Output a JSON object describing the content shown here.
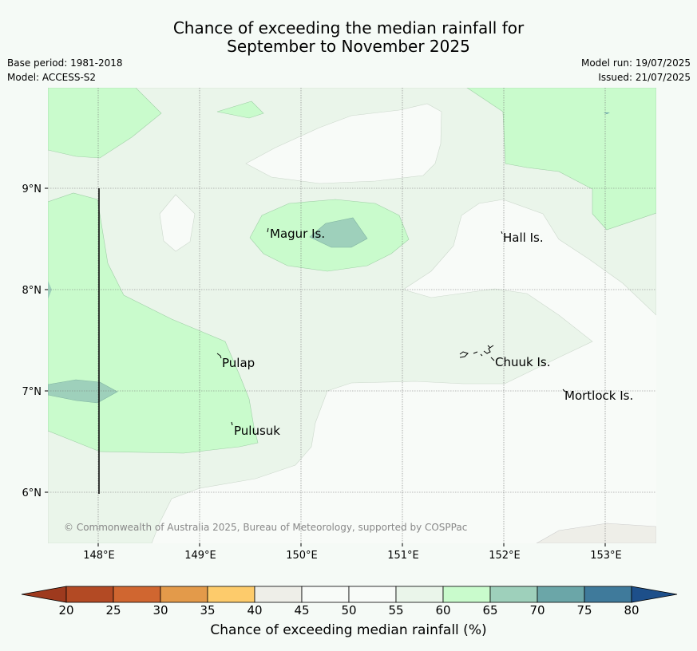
{
  "header": {
    "title_line1": "Chance of exceeding the median rainfall for",
    "title_line2": "September to November 2025",
    "base_period": "Base period: 1981-2018",
    "model": "Model: ACCESS-S2",
    "model_run": "Model run: 19/07/2025",
    "issued": "Issued: 21/07/2025"
  },
  "map": {
    "y_ticks": [
      "9°N",
      "8°N",
      "7°N",
      "6°N"
    ],
    "x_ticks": [
      "148°E",
      "149°E",
      "150°E",
      "151°E",
      "152°E",
      "153°E"
    ],
    "places": [
      "Magur Is.",
      "Hall Is.",
      "Pulap",
      "Chuuk Is.",
      "Mortlock Is.",
      "Pulusuk"
    ],
    "copyright": "© Commonwealth of Australia 2025, Bureau of Meteorology, supported by COSPPac"
  },
  "colorbar": {
    "ticks": [
      "20",
      "25",
      "30",
      "35",
      "40",
      "45",
      "50",
      "55",
      "60",
      "65",
      "70",
      "75",
      "80"
    ],
    "label": "Chance of exceeding median rainfall (%)",
    "colors": [
      "#b34a24",
      "#d06630",
      "#e39a4a",
      "#fdcb6b",
      "#eeeee8",
      "#f8fbf8",
      "#f8fbf8",
      "#eaf5ea",
      "#c9fbcc",
      "#9ed0bb",
      "#6ba6a8",
      "#3f7a9b"
    ],
    "under_color": "#9e3a1e",
    "over_color": "#1d4f8a"
  }
}
